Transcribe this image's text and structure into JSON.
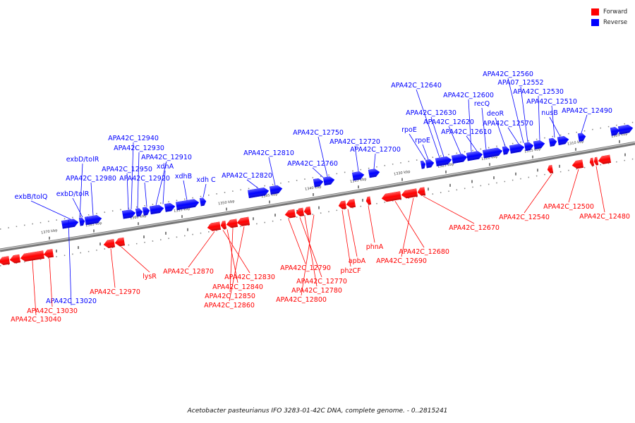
{
  "legend": {
    "forward_label": "Forward",
    "forward_color": "#ff0000",
    "reverse_label": "Reverse",
    "reverse_color": "#0000ff"
  },
  "caption": "Acetobacter pasteurianus IFO 3283-01-42C DNA, complete genome. - 0..2815241",
  "ticks": [
    "1370 kbp",
    "1365 kbp",
    "1360 kbp",
    "1355 kbp",
    "1350 kbp",
    "1345 kbp",
    "1340 kbp",
    "1335 kbp",
    "1330 kbp",
    "1325 kbp",
    "1320 kbp",
    "1315 kbp",
    "1310 kbp",
    "1305 kbp"
  ],
  "reverse_labels": [
    "exbB/tolQ",
    "exbD/tolR",
    "exbD/tolR",
    "APA42C_12980",
    "APA42C_12950",
    "APA42C_12940",
    "APA42C_12930",
    "APA42C_12920",
    "APA42C_12910",
    "xdhA",
    "xdhB",
    "xdh C",
    "APA42C_12820",
    "APA42C_12810",
    "APA42C_12760",
    "APA42C_12750",
    "APA42C_12720",
    "APA42C_12700",
    "rpoE",
    "rpoE",
    "APA42C_12640",
    "APA42C_12630",
    "APA42C_12620",
    "APA42C_12610",
    "APA42C_12600",
    "recQ",
    "deoR",
    "APA42C_12570",
    "APA42C_12560",
    "APA07_12552",
    "APA42C_12530",
    "APA42C_12510",
    "nusB",
    "APA42C_12490",
    "APA42C_13020"
  ],
  "forward_labels": [
    "APA42C_13030",
    "APA42C_13040",
    "APA42C_12970",
    "lysR",
    "APA42C_12870",
    "APA42C_12830",
    "APA42C_12840",
    "APA42C_12850",
    "APA42C_12860",
    "APA42C_12790",
    "APA42C_12770",
    "APA42C_12780",
    "APA42C_12800",
    "phzCF",
    "apbA",
    "phnA",
    "APA42C_12680",
    "APA42C_12690",
    "APA42C_12670",
    "APA42C_12540",
    "APA42C_12500",
    "APA42C_12480"
  ]
}
